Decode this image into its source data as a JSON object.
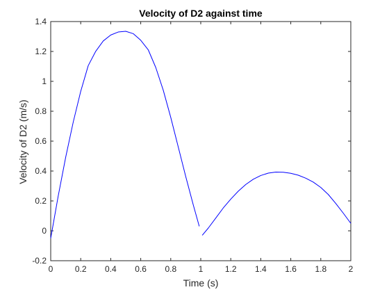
{
  "chart_data": {
    "type": "line",
    "title": "Velocity of D2 against time",
    "xlabel": "Time (s)",
    "ylabel": "Velocity of D2 (m/s)",
    "xlim": [
      0,
      2
    ],
    "ylim": [
      -0.2,
      1.4
    ],
    "xticks": [
      0,
      0.2,
      0.4,
      0.6,
      0.8,
      1,
      1.2,
      1.4,
      1.6,
      1.8,
      2
    ],
    "xtick_labels": [
      "0",
      "0.2",
      "0.4",
      "0.6",
      "0.8",
      "1",
      "1.2",
      "1.4",
      "1.6",
      "1.8",
      "2"
    ],
    "yticks": [
      -0.2,
      0,
      0.2,
      0.4,
      0.6,
      0.8,
      1,
      1.2,
      1.4
    ],
    "ytick_labels": [
      "-0.2",
      "0",
      "0.2",
      "0.4",
      "0.6",
      "0.8",
      "1",
      "1.2",
      "1.4"
    ],
    "grid": false,
    "legend": "none",
    "line_color": "#0000ff",
    "axis_color": "#262626",
    "series": [
      {
        "segments": [
          {
            "x": [
              0,
              0.05,
              0.1,
              0.15,
              0.2,
              0.25,
              0.3,
              0.35,
              0.4,
              0.45,
              0.5,
              0.55,
              0.6,
              0.65,
              0.7,
              0.75,
              0.8,
              0.85,
              0.9,
              0.95,
              0.99
            ],
            "y": [
              -0.05,
              0.233,
              0.493,
              0.727,
              0.933,
              1.105,
              1.201,
              1.27,
              1.31,
              1.33,
              1.335,
              1.319,
              1.275,
              1.211,
              1.093,
              0.941,
              0.759,
              0.561,
              0.363,
              0.174,
              0.03
            ]
          },
          {
            "x": [
              1.01,
              1.05,
              1.1,
              1.15,
              1.2,
              1.25,
              1.3,
              1.35,
              1.4,
              1.45,
              1.5,
              1.55,
              1.6,
              1.65,
              1.7,
              1.75,
              1.8,
              1.85,
              1.9,
              1.95,
              2
            ],
            "y": [
              -0.03,
              0.018,
              0.085,
              0.153,
              0.212,
              0.265,
              0.31,
              0.345,
              0.37,
              0.386,
              0.393,
              0.392,
              0.385,
              0.372,
              0.352,
              0.326,
              0.29,
              0.243,
              0.183,
              0.118,
              0.05
            ]
          }
        ]
      }
    ]
  }
}
